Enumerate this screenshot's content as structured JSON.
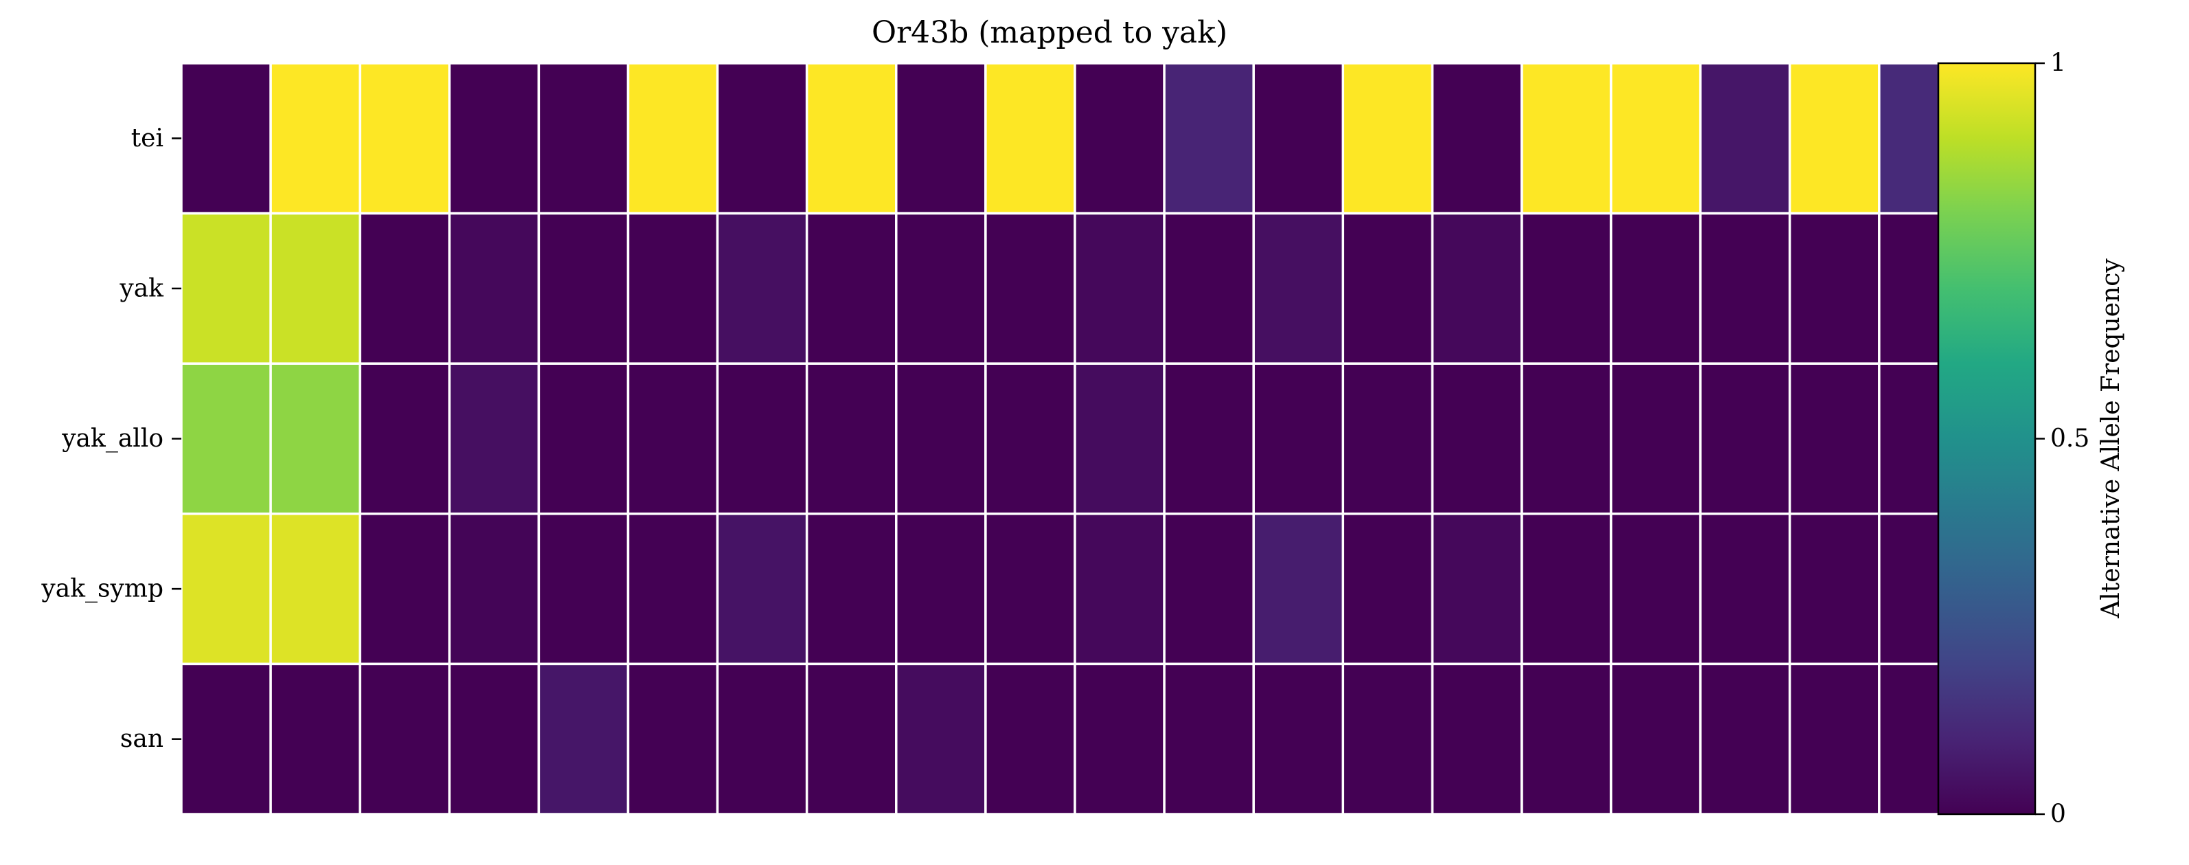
{
  "chart_data": {
    "type": "heatmap",
    "title": "Or43b (mapped to yak)",
    "rows": [
      "tei",
      "yak",
      "yak_allo",
      "yak_symp",
      "san"
    ],
    "n_columns": 20,
    "values": [
      [
        0.0,
        1.0,
        1.0,
        0.0,
        0.0,
        1.0,
        0.0,
        1.0,
        0.0,
        1.0,
        0.0,
        0.1,
        0.0,
        1.0,
        0.0,
        1.0,
        1.0,
        0.06,
        1.0,
        0.12
      ],
      [
        0.92,
        0.92,
        0.0,
        0.02,
        0.0,
        0.0,
        0.04,
        0.0,
        0.0,
        0.0,
        0.02,
        0.0,
        0.04,
        0.0,
        0.02,
        0.0,
        0.0,
        0.0,
        0.0,
        0.0
      ],
      [
        0.83,
        0.83,
        0.0,
        0.04,
        0.0,
        0.0,
        0.0,
        0.0,
        0.0,
        0.0,
        0.03,
        0.0,
        0.0,
        0.0,
        0.0,
        0.0,
        0.0,
        0.0,
        0.0,
        0.0
      ],
      [
        0.95,
        0.95,
        0.0,
        0.01,
        0.0,
        0.0,
        0.05,
        0.0,
        0.0,
        0.0,
        0.02,
        0.0,
        0.08,
        0.0,
        0.02,
        0.0,
        0.0,
        0.0,
        0.0,
        0.0
      ],
      [
        0.0,
        0.0,
        0.0,
        0.0,
        0.06,
        0.0,
        0.0,
        0.0,
        0.03,
        0.0,
        0.0,
        0.0,
        0.0,
        0.0,
        0.0,
        0.0,
        0.0,
        0.0,
        0.0,
        0.0
      ]
    ],
    "colormap": "viridis",
    "vmin": 0,
    "vmax": 1,
    "colorbar": {
      "label": "Alternative Allele Frequency",
      "ticks": [
        "0",
        "0.5",
        "1"
      ],
      "tick_values": [
        0,
        0.5,
        1
      ]
    },
    "grid_line_color": "#ffffff"
  }
}
